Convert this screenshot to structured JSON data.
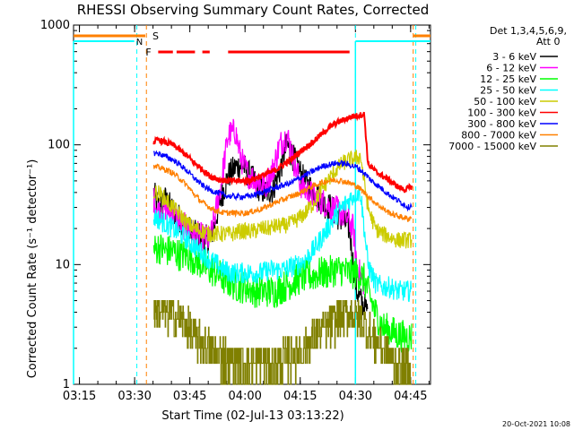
{
  "chart_data": {
    "type": "line",
    "title": "RHESSI Observing Summary Count Rates, Corrected",
    "xlabel": "Start Time (02-Jul-13 03:13:22)",
    "ylabel": "Corrected Count Rate (s⁻¹ detector⁻¹)",
    "y_scale": "log",
    "xlim_minutes": [
      0,
      97
    ],
    "ylim": [
      1,
      1000
    ],
    "x_ticks": [
      {
        "label": "03:15",
        "minute": 1.6
      },
      {
        "label": "03:30",
        "minute": 16.6
      },
      {
        "label": "03:45",
        "minute": 31.6
      },
      {
        "label": "04:00",
        "minute": 46.6
      },
      {
        "label": "04:15",
        "minute": 61.6
      },
      {
        "label": "04:30",
        "minute": 76.6
      },
      {
        "label": "04:45",
        "minute": 91.6
      }
    ],
    "y_ticks": [
      {
        "label": "1",
        "value": 1
      },
      {
        "label": "10",
        "value": 10
      },
      {
        "label": "100",
        "value": 100
      },
      {
        "label": "1000",
        "value": 1000
      }
    ],
    "legend_header_1": "Det 1,3,4,5,6,9,",
    "legend_header_2": "Att 0",
    "legend_position": "right",
    "timestamp": "20-Oct-2021 10:08",
    "flags": [
      {
        "label": "S",
        "color": "#ff8000",
        "segments": [
          [
            0,
            19.5
          ]
        ]
      },
      {
        "label": "F",
        "color": "#ff0000",
        "segments": [
          [
            23,
            27
          ],
          [
            28,
            33
          ],
          [
            35,
            37
          ],
          [
            42,
            75
          ]
        ]
      }
    ],
    "night_marker": {
      "label": "N",
      "color": "#00ffff",
      "segments": [
        [
          0,
          16.5
        ],
        [
          76.6,
          97
        ]
      ]
    },
    "vertical_markers": [
      {
        "minute": 17.2,
        "color": "#00ffff"
      },
      {
        "minute": 19.8,
        "color": "#ff8000"
      },
      {
        "minute": 76.6,
        "color": "#00ffff"
      },
      {
        "minute": 92.3,
        "color": "#ff8000"
      },
      {
        "minute": 93.0,
        "color": "#00ffff"
      }
    ],
    "series": [
      {
        "name": "3 - 6 keV",
        "color": "#000000",
        "x": [
          21.8,
          23,
          25,
          27,
          29,
          31,
          33,
          35,
          37,
          38,
          40,
          42,
          44,
          46,
          47,
          48,
          50,
          52,
          54,
          56,
          58,
          60,
          61,
          62,
          63,
          64,
          65,
          66,
          67,
          68,
          70,
          72,
          74,
          75,
          76,
          77,
          78,
          79,
          80
        ],
        "values": [
          40,
          30,
          35,
          28,
          24,
          20,
          18,
          17,
          16,
          20,
          35,
          55,
          65,
          68,
          60,
          55,
          45,
          40,
          42,
          60,
          100,
          75,
          65,
          55,
          48,
          45,
          42,
          38,
          35,
          32,
          30,
          25,
          22,
          20,
          10,
          6,
          5,
          4.5,
          4
        ]
      },
      {
        "name": "6 - 12 keV",
        "color": "#ff00ff",
        "x": [
          21.8,
          23,
          25,
          27,
          29,
          31,
          33,
          35,
          37,
          38,
          40,
          42,
          44,
          45,
          46,
          47,
          48,
          50,
          52,
          54,
          56,
          58,
          59,
          60,
          61,
          62,
          63,
          64,
          66,
          68,
          70,
          72,
          74,
          76,
          77,
          78,
          79
        ],
        "values": [
          35,
          28,
          30,
          26,
          22,
          20,
          18,
          17,
          16,
          22,
          45,
          120,
          130,
          90,
          70,
          60,
          55,
          50,
          45,
          60,
          100,
          120,
          95,
          70,
          55,
          45,
          42,
          40,
          36,
          33,
          30,
          28,
          25,
          20,
          10,
          8,
          7
        ]
      },
      {
        "name": "12 - 25 keV",
        "color": "#00ff00",
        "x": [
          21.8,
          23,
          25,
          27,
          29,
          31,
          33,
          35,
          37,
          39,
          41,
          43,
          45,
          47,
          49,
          51,
          53,
          55,
          57,
          59,
          61,
          63,
          65,
          67,
          69,
          71,
          73,
          75,
          77,
          78,
          79,
          80,
          82,
          84,
          86,
          88,
          90,
          92
        ],
        "values": [
          13,
          14,
          13,
          13,
          12,
          12,
          11,
          10,
          9,
          8.5,
          7.5,
          7,
          6.5,
          6.5,
          6,
          6,
          6,
          6,
          6.5,
          7,
          7.5,
          8,
          8,
          8.5,
          8.5,
          9,
          9,
          8.5,
          8.5,
          8,
          7.5,
          6,
          4,
          3,
          2.8,
          2.6,
          2.5,
          2.5
        ]
      },
      {
        "name": "25 - 50 keV",
        "color": "#00ffff",
        "x": [
          21.8,
          23,
          25,
          27,
          29,
          31,
          33,
          35,
          37,
          39,
          41,
          43,
          45,
          47,
          49,
          51,
          53,
          55,
          57,
          59,
          61,
          63,
          65,
          67,
          69,
          71,
          73,
          75,
          77,
          78,
          80,
          82,
          84,
          86,
          88,
          90,
          92
        ],
        "values": [
          25,
          24,
          22,
          20,
          18,
          16,
          14,
          12.5,
          11,
          10,
          9,
          8.5,
          8.5,
          8.5,
          8.5,
          8.5,
          9,
          9,
          9,
          9.5,
          10,
          11,
          13,
          16,
          20,
          25,
          30,
          35,
          40,
          40,
          10,
          7,
          6.5,
          6.5,
          6,
          6,
          6
        ]
      },
      {
        "name": "50 - 100 keV",
        "color": "#cccc00",
        "x": [
          21.8,
          23,
          25,
          27,
          29,
          31,
          33,
          35,
          37,
          39,
          41,
          43,
          45,
          47,
          49,
          51,
          53,
          55,
          57,
          59,
          61,
          63,
          65,
          67,
          69,
          71,
          73,
          75,
          77,
          78,
          80,
          82,
          84,
          86,
          88,
          90,
          92
        ],
        "values": [
          40,
          40,
          35,
          30,
          26,
          22,
          20,
          19,
          18,
          18,
          18,
          18,
          19,
          19,
          19,
          20,
          20,
          21,
          21,
          22,
          24,
          27,
          32,
          40,
          50,
          60,
          70,
          75,
          78,
          80,
          30,
          20,
          18,
          17,
          16,
          16,
          16
        ]
      },
      {
        "name": "100 - 300 keV",
        "color": "#ff0000",
        "x": [
          21.8,
          23,
          25,
          27,
          29,
          31,
          33,
          35,
          37,
          39,
          41,
          43,
          45,
          47,
          49,
          51,
          53,
          55,
          57,
          59,
          61,
          63,
          65,
          67,
          69,
          71,
          73,
          75,
          77,
          79,
          80,
          82,
          84,
          86,
          88,
          90,
          92
        ],
        "values": [
          105,
          110,
          105,
          100,
          90,
          80,
          70,
          62,
          55,
          52,
          50,
          50,
          50,
          50,
          52,
          55,
          58,
          62,
          68,
          75,
          85,
          95,
          105,
          120,
          135,
          150,
          160,
          170,
          175,
          180,
          70,
          60,
          55,
          50,
          45,
          42,
          45
        ]
      },
      {
        "name": "300 - 800 keV",
        "color": "#0000ff",
        "x": [
          21.8,
          23,
          25,
          27,
          29,
          31,
          33,
          35,
          37,
          39,
          41,
          43,
          45,
          47,
          49,
          51,
          53,
          55,
          57,
          59,
          61,
          63,
          65,
          67,
          69,
          71,
          73,
          75,
          77,
          79,
          81,
          83,
          85,
          87,
          89,
          91,
          92
        ],
        "values": [
          85,
          85,
          80,
          75,
          68,
          60,
          52,
          46,
          42,
          40,
          38,
          37,
          37,
          37,
          38,
          40,
          42,
          44,
          46,
          48,
          52,
          56,
          60,
          65,
          68,
          70,
          70,
          68,
          65,
          58,
          50,
          45,
          40,
          36,
          33,
          30,
          32
        ]
      },
      {
        "name": "800 - 7000 keV",
        "color": "#ff8000",
        "x": [
          21.8,
          23,
          25,
          27,
          29,
          31,
          33,
          35,
          37,
          39,
          41,
          43,
          45,
          47,
          49,
          51,
          53,
          55,
          57,
          59,
          61,
          63,
          65,
          67,
          69,
          71,
          73,
          75,
          77,
          79,
          81,
          83,
          85,
          87,
          89,
          91,
          92
        ],
        "values": [
          65,
          65,
          62,
          58,
          52,
          45,
          38,
          33,
          30,
          28,
          27,
          27,
          27,
          27,
          28,
          29,
          31,
          33,
          35,
          37,
          39,
          42,
          45,
          48,
          50,
          51,
          50,
          48,
          45,
          40,
          35,
          31,
          28,
          26,
          25,
          24,
          25
        ]
      },
      {
        "name": "7000 - 15000 keV",
        "color": "#808000",
        "x": [
          21.8,
          24,
          27,
          30,
          33,
          36,
          39,
          42,
          45,
          48,
          51,
          54,
          57,
          60,
          63,
          66,
          69,
          72,
          75,
          78,
          81,
          84,
          87,
          90,
          92
        ],
        "values": [
          4.5,
          4,
          3.8,
          3.2,
          2.5,
          2,
          1.8,
          1.6,
          1.5,
          1.5,
          1.5,
          1.5,
          1.6,
          1.8,
          2,
          2.5,
          3,
          3.5,
          4,
          3.5,
          2.5,
          2,
          1.5,
          1.3,
          1.2
        ]
      }
    ]
  }
}
